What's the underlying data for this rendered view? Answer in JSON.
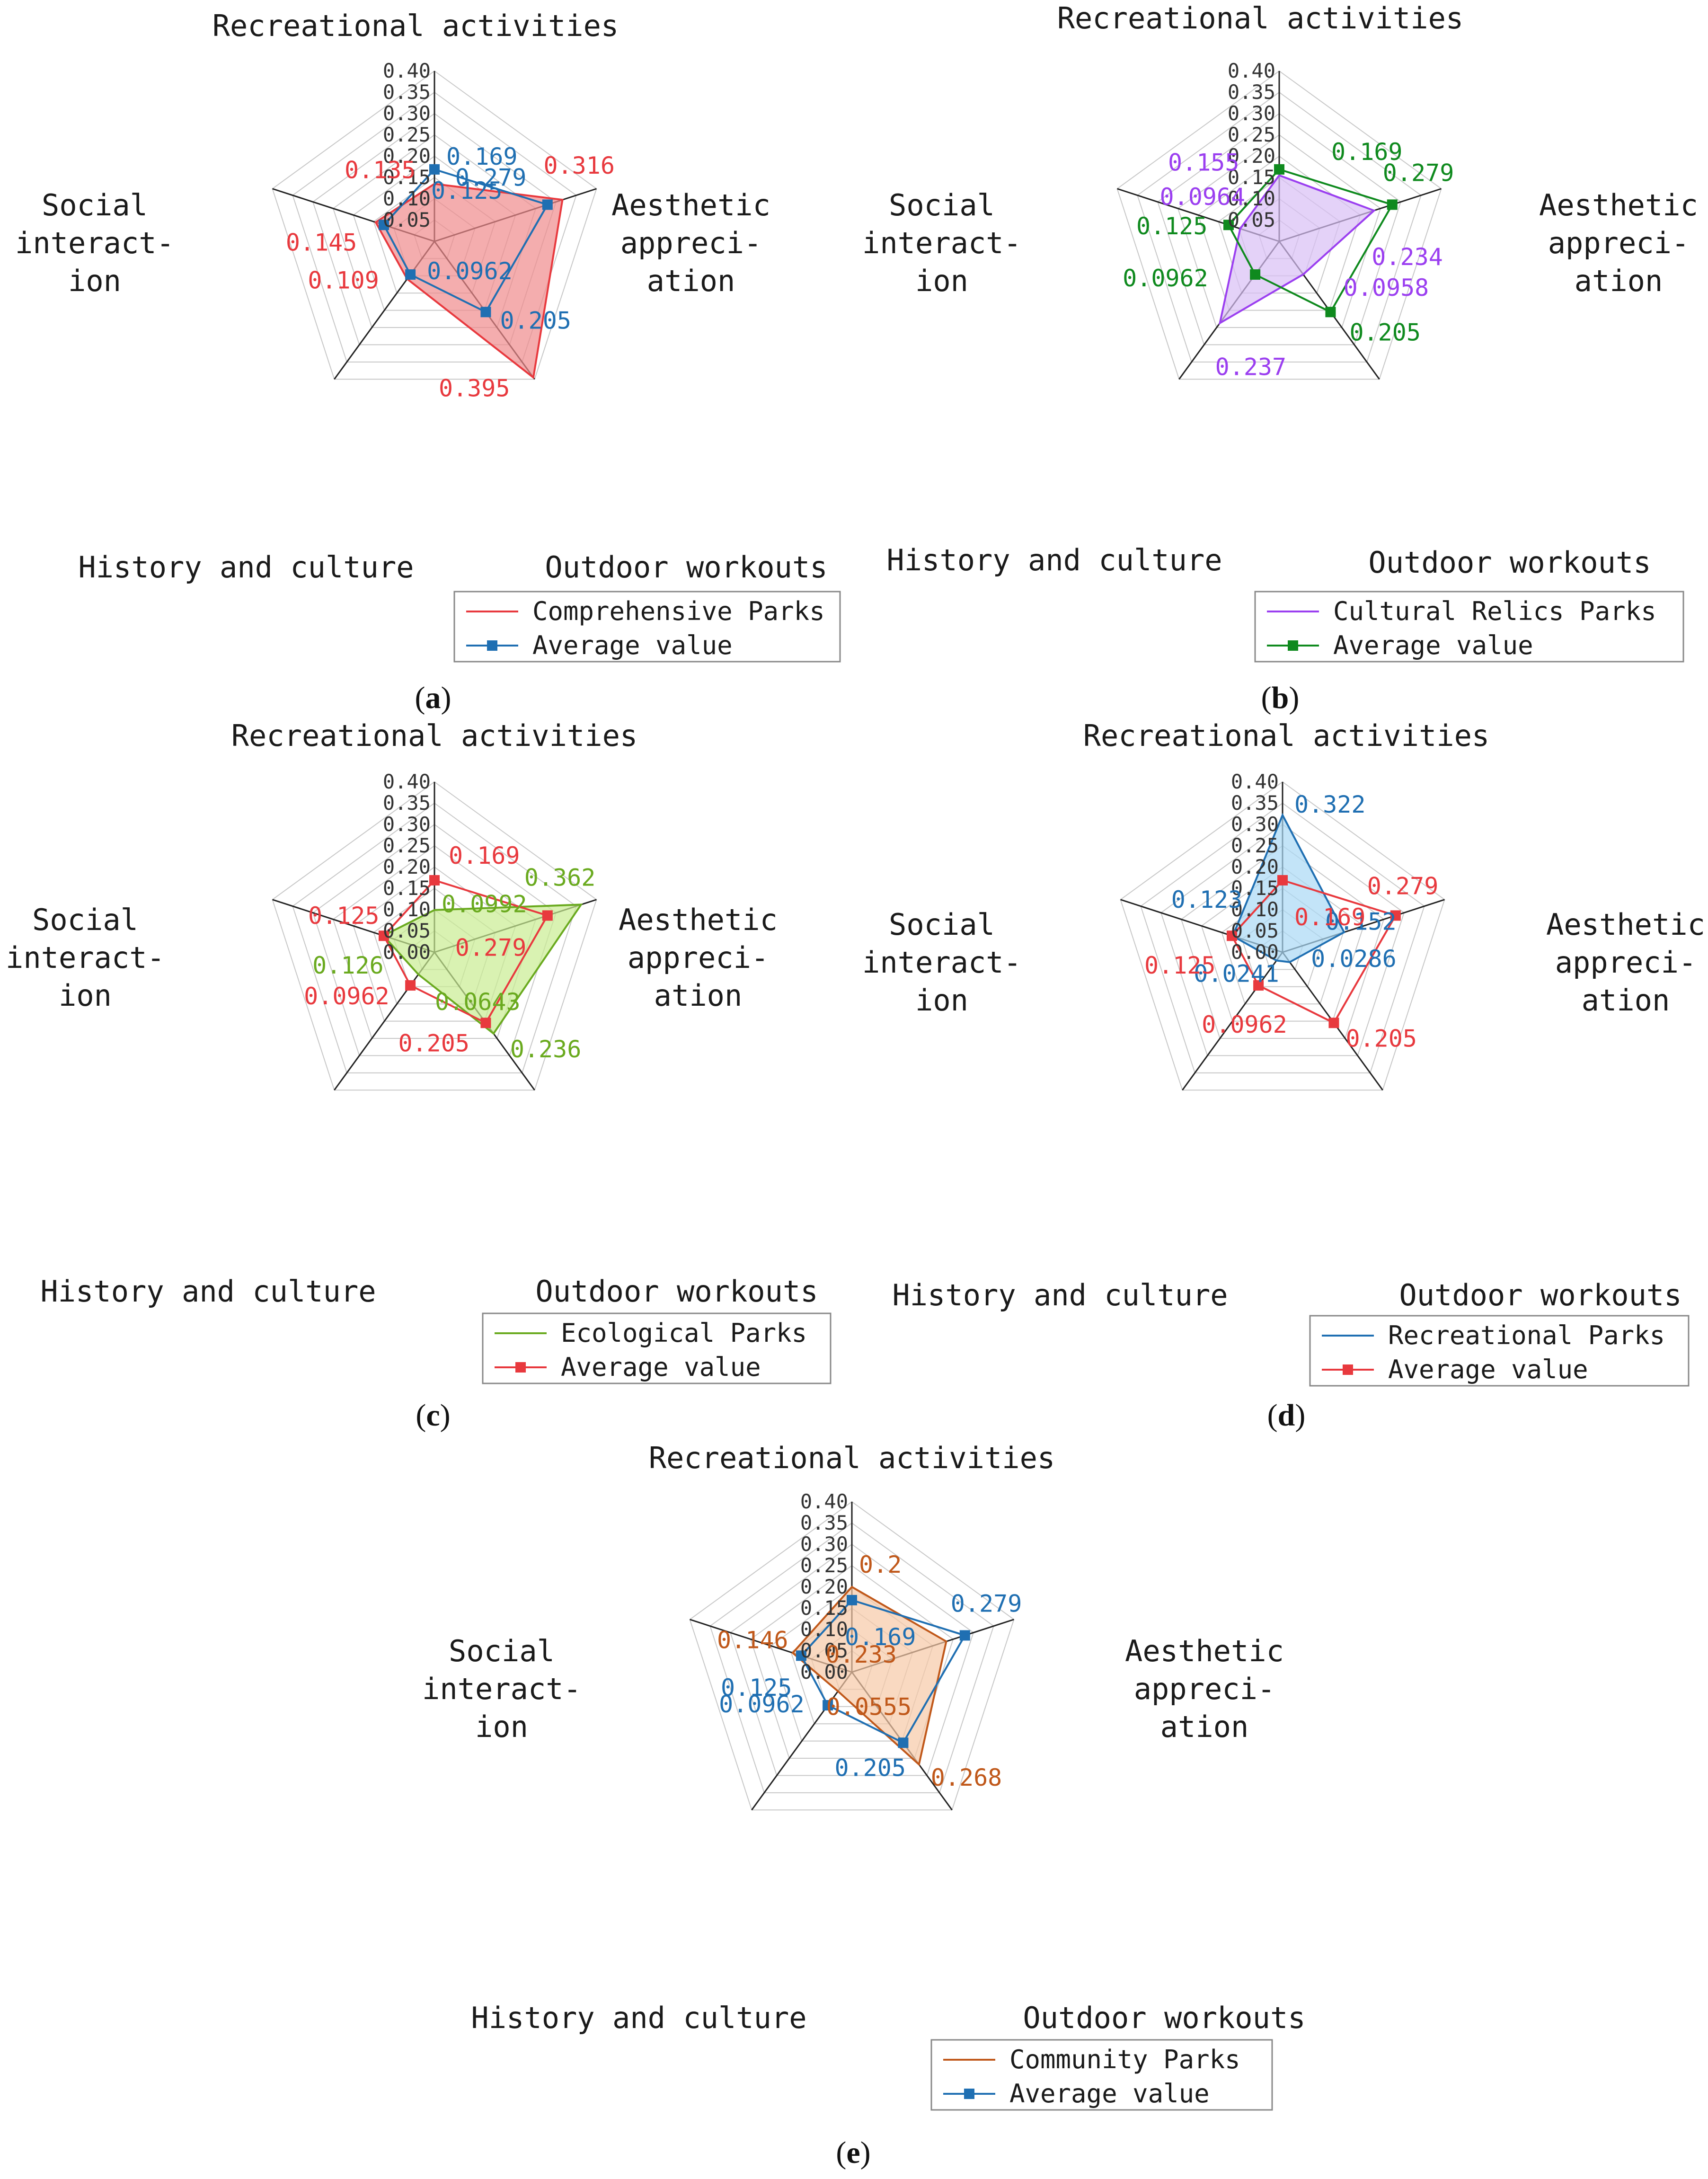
{
  "chart_data": [
    {
      "type": "radar",
      "panel_label": "(a)",
      "axes": [
        "Recreational activities",
        "Aesthetic appreciation",
        "Outdoor workouts",
        "History and culture",
        "Social interaction"
      ],
      "axis_label_lines": [
        [
          "Recreational activities"
        ],
        [
          "Aesthetic",
          "appreci-",
          "ation"
        ],
        [
          "Outdoor workouts"
        ],
        [
          "History and culture"
        ],
        [
          "Social",
          "interact-",
          "ion"
        ]
      ],
      "rlim": [
        0,
        0.4
      ],
      "ticks": [
        "0.05",
        "0.10",
        "0.15",
        "0.20",
        "0.25",
        "0.30",
        "0.35",
        "0.40"
      ],
      "series": [
        {
          "name": "Comprehensive Parks",
          "values": [
            0.135,
            0.316,
            0.395,
            0.109,
            0.145
          ],
          "labels": [
            "0.135",
            "0.316",
            "0.395",
            "0.109",
            "0.145"
          ],
          "color": "#e8393e",
          "fill": "#f08a8c",
          "marker": false
        },
        {
          "name": "Average value",
          "values": [
            0.169,
            0.279,
            0.205,
            0.0962,
            0.125
          ],
          "labels": [
            "0.169",
            "0.279",
            "0.205",
            "0.0962",
            "0.125"
          ],
          "color": "#1f6fb2",
          "fill": null,
          "marker": true
        }
      ]
    },
    {
      "type": "radar",
      "panel_label": "(b)",
      "axes": [
        "Recreational activities",
        "Aesthetic appreciation",
        "Outdoor workouts",
        "History and culture",
        "Social interaction"
      ],
      "axis_label_lines": [
        [
          "Recreational activities"
        ],
        [
          "Aesthetic",
          "appreci-",
          "ation"
        ],
        [
          "Outdoor workouts"
        ],
        [
          "History and culture"
        ],
        [
          "Social",
          "interact-",
          "ion"
        ]
      ],
      "rlim": [
        0,
        0.4
      ],
      "ticks": [
        "0.05",
        "0.10",
        "0.15",
        "0.20",
        "0.25",
        "0.30",
        "0.35",
        "0.40"
      ],
      "series": [
        {
          "name": "Cultural Relics Parks",
          "values": [
            0.155,
            0.234,
            0.0958,
            0.237,
            0.0964
          ],
          "labels": [
            "0.155",
            "0.234",
            "0.0958",
            "0.237",
            "0.0964"
          ],
          "color": "#9b3ff0",
          "fill": "#d8bff5",
          "marker": false
        },
        {
          "name": "Average value",
          "values": [
            0.169,
            0.279,
            0.205,
            0.0962,
            0.125
          ],
          "labels": [
            "0.169",
            "0.279",
            "0.205",
            "0.0962",
            "0.125"
          ],
          "color": "#0f8a1e",
          "fill": null,
          "marker": true
        }
      ]
    },
    {
      "type": "radar",
      "panel_label": "(c)",
      "axes": [
        "Recreational activities",
        "Aesthetic appreciation",
        "Outdoor workouts",
        "History and culture",
        "Social interaction"
      ],
      "axis_label_lines": [
        [
          "Recreational activities"
        ],
        [
          "Aesthetic",
          "appreci-",
          "ation"
        ],
        [
          "Outdoor workouts"
        ],
        [
          "History and culture"
        ],
        [
          "Social",
          "interact-",
          "ion"
        ]
      ],
      "rlim": [
        0,
        0.4
      ],
      "ticks": [
        "0.00",
        "0.05",
        "0.10",
        "0.15",
        "0.20",
        "0.25",
        "0.30",
        "0.35",
        "0.40"
      ],
      "series": [
        {
          "name": "Ecological Parks",
          "values": [
            0.0992,
            0.362,
            0.236,
            0.0643,
            0.126
          ],
          "labels": [
            "0.0992",
            "0.362",
            "0.236",
            "0.0643",
            "0.126"
          ],
          "color": "#6aaa1f",
          "fill": "#c9ec92",
          "marker": false
        },
        {
          "name": "Average value",
          "values": [
            0.169,
            0.279,
            0.205,
            0.0962,
            0.125
          ],
          "labels": [
            "0.169",
            "0.279",
            "0.205",
            "0.0962",
            "0.125"
          ],
          "color": "#e8393e",
          "fill": null,
          "marker": true
        }
      ]
    },
    {
      "type": "radar",
      "panel_label": "(d)",
      "axes": [
        "Recreational activities",
        "Aesthetic appreciation",
        "Outdoor workouts",
        "History and culture",
        "Social interaction"
      ],
      "axis_label_lines": [
        [
          "Recreational activities"
        ],
        [
          "Aesthetic",
          "appreci-",
          "ation"
        ],
        [
          "Outdoor workouts"
        ],
        [
          "History and culture"
        ],
        [
          "Social",
          "interact-",
          "ion"
        ]
      ],
      "rlim": [
        0,
        0.4
      ],
      "ticks": [
        "0.00",
        "0.05",
        "0.10",
        "0.15",
        "0.20",
        "0.25",
        "0.30",
        "0.35",
        "0.40"
      ],
      "series": [
        {
          "name": "Recreational Parks",
          "values": [
            0.322,
            0.152,
            0.0286,
            0.0241,
            0.123
          ],
          "labels": [
            "0.322",
            "0.152",
            "0.0286",
            "0.0241",
            "0.123"
          ],
          "color": "#1f6fb2",
          "fill": "#a9d8f5",
          "marker": false
        },
        {
          "name": "Average value",
          "values": [
            0.169,
            0.279,
            0.205,
            0.0962,
            0.125
          ],
          "labels": [
            "0.169",
            "0.279",
            "0.205",
            "0.0962",
            "0.125"
          ],
          "color": "#e8393e",
          "fill": null,
          "marker": true
        }
      ]
    },
    {
      "type": "radar",
      "panel_label": "(e)",
      "axes": [
        "Recreational activities",
        "Aesthetic appreciation",
        "Outdoor workouts",
        "History and culture",
        "Social interaction"
      ],
      "axis_label_lines": [
        [
          "Recreational activities"
        ],
        [
          "Aesthetic",
          "appreci-",
          "ation"
        ],
        [
          "Outdoor workouts"
        ],
        [
          "History and culture"
        ],
        [
          "Social",
          "interact-",
          "ion"
        ]
      ],
      "rlim": [
        0,
        0.4
      ],
      "ticks": [
        "0.00",
        "0.05",
        "0.10",
        "0.15",
        "0.20",
        "0.25",
        "0.30",
        "0.35",
        "0.40"
      ],
      "series": [
        {
          "name": "Community Parks",
          "values": [
            0.2,
            0.233,
            0.268,
            0.0555,
            0.146
          ],
          "labels": [
            "0.2",
            "0.233",
            "0.268",
            "0.0555",
            "0.146"
          ],
          "color": "#c0581a",
          "fill": "#f7c9a6",
          "marker": false
        },
        {
          "name": "Average value",
          "values": [
            0.169,
            0.279,
            0.205,
            0.0962,
            0.125
          ],
          "labels": [
            "0.169",
            "0.279",
            "0.205",
            "0.0962",
            "0.125"
          ],
          "color": "#1f6fb2",
          "fill": null,
          "marker": true
        }
      ]
    }
  ]
}
